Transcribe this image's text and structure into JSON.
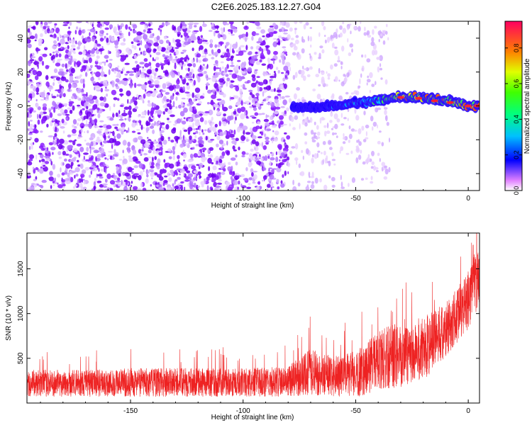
{
  "title": "C2E6.2025.183.12.27.G04",
  "colors": {
    "scatter": "#8000ff",
    "band": [
      "#1a00ff",
      "#00c8ff",
      "#40ff40",
      "#ffe000",
      "#ff4000",
      "#ff0040"
    ],
    "snr_line": "#ee2222"
  },
  "chart_data": [
    {
      "type": "heatmap",
      "xlabel": "Height of straight line (km)",
      "ylabel": "Frequency (Hz)",
      "xlim": [
        -196,
        5
      ],
      "ylim": [
        -50,
        50
      ],
      "xticks": [
        -150,
        -100,
        -50,
        0
      ],
      "yticks": [
        -40,
        -20,
        0,
        20,
        40
      ],
      "colorbar": {
        "label": "Normalized spectral amplitude",
        "range": [
          0,
          0.95
        ],
        "ticks": [
          "0.0",
          "0.2",
          "0.4",
          "0.6",
          "0.8"
        ]
      },
      "noise_region": {
        "x_range": [
          -196,
          -80
        ],
        "normalized_amplitude": 0.1
      },
      "sparse_region": {
        "x_range": [
          -80,
          -35
        ],
        "normalized_amplitude": 0.05
      },
      "signal_band": {
        "x": [
          -78,
          -70,
          -60,
          -50,
          -40,
          -30,
          -20,
          -10,
          -5,
          0,
          5
        ],
        "frequency": [
          0,
          -1,
          0,
          2,
          3,
          5,
          5,
          3,
          2,
          0,
          0
        ],
        "normalized_amplitude": [
          0.12,
          0.2,
          0.35,
          0.45,
          0.5,
          0.85,
          0.8,
          0.85,
          0.9,
          0.92,
          0.95
        ]
      },
      "grid": false
    },
    {
      "type": "line",
      "xlabel": "Height of straight line (km)",
      "ylabel": "SNR (10 * v/v)",
      "xlim": [
        -196,
        5
      ],
      "ylim": [
        0,
        1900
      ],
      "xticks": [
        -150,
        -100,
        -50,
        0
      ],
      "yticks": [
        500,
        1000,
        1500
      ],
      "series": [
        {
          "x": [
            -196,
            -170,
            -150,
            -120,
            -100,
            -80,
            -70,
            -60,
            -50,
            -40,
            -30,
            -20,
            -10,
            0,
            5
          ],
          "y": [
            220,
            220,
            230,
            230,
            230,
            240,
            350,
            300,
            320,
            470,
            560,
            600,
            820,
            1150,
            1450
          ],
          "y_spread": [
            150,
            150,
            160,
            160,
            160,
            170,
            260,
            230,
            260,
            330,
            380,
            360,
            300,
            330,
            380
          ]
        }
      ],
      "grid": false
    }
  ]
}
